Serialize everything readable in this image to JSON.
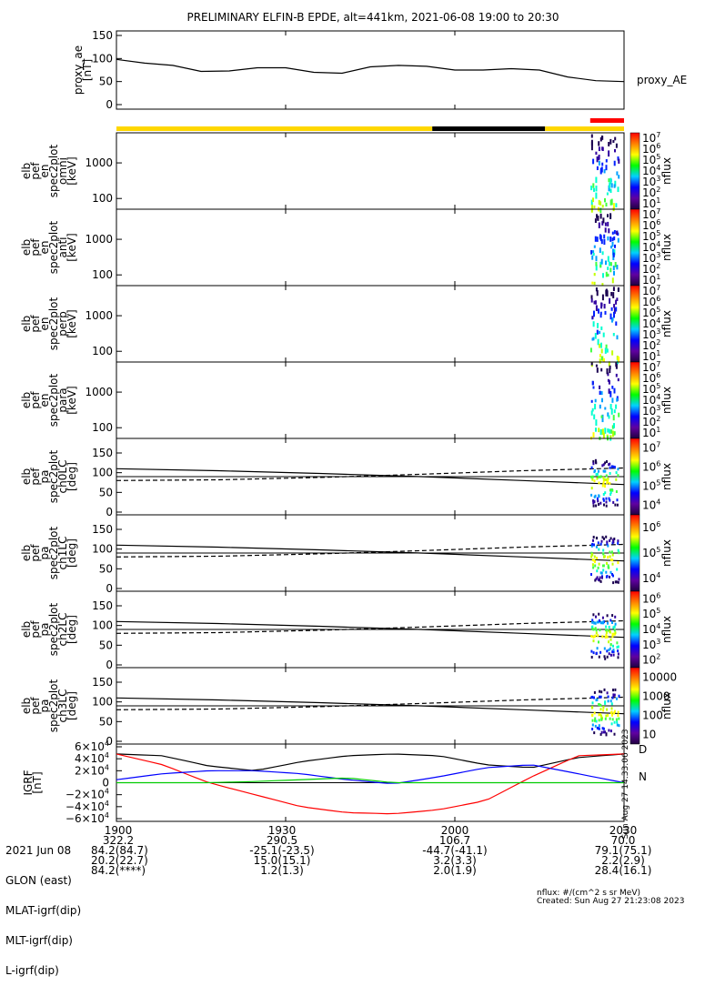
{
  "title": "PRELIMINARY ELFIN-B EPDE, alt=441km, 2021-06-08 19:00 to 20:30",
  "ae_panel": {
    "ylabel": [
      "proxy_ae",
      "[nT]"
    ],
    "legend": "proxy_AE",
    "yticks": [
      "0",
      "50",
      "100",
      "150"
    ]
  },
  "status_bar": {
    "colors": {
      "day": "#ffd700",
      "night": "#000000",
      "science": "#ff0000"
    },
    "segments": [
      {
        "state": "day",
        "start": 1900,
        "end": 1956
      },
      {
        "state": "night",
        "start": 1956,
        "end": 2016
      },
      {
        "state": "day",
        "start": 2016,
        "end": 2030
      }
    ],
    "science_zone": {
      "start": 2024,
      "end": 2030
    }
  },
  "spectrogram_panels": [
    {
      "ylabel": [
        "elb",
        "pef",
        "en",
        "spec2plot",
        "omni",
        "[keV]"
      ],
      "yticks": [
        "100",
        "1000"
      ],
      "zlabel": "nflux",
      "zticks": [
        "10",
        "10",
        "10",
        "10",
        "10",
        "10",
        "10"
      ],
      "zexp": [
        "1",
        "2",
        "3",
        "4",
        "5",
        "6",
        "7"
      ]
    },
    {
      "ylabel": [
        "elb",
        "pef",
        "en",
        "spec2plot",
        "anti",
        "[keV]"
      ],
      "yticks": [
        "100",
        "1000"
      ],
      "zlabel": "nflux",
      "zticks": [
        "10",
        "10",
        "10",
        "10",
        "10",
        "10",
        "10"
      ],
      "zexp": [
        "1",
        "2",
        "3",
        "4",
        "5",
        "6",
        "7"
      ]
    },
    {
      "ylabel": [
        "elb",
        "pef",
        "en",
        "spec2plot",
        "perp",
        "[keV]"
      ],
      "yticks": [
        "100",
        "1000"
      ],
      "zlabel": "nflux",
      "zticks": [
        "10",
        "10",
        "10",
        "10",
        "10",
        "10",
        "10"
      ],
      "zexp": [
        "1",
        "2",
        "3",
        "4",
        "5",
        "6",
        "7"
      ]
    },
    {
      "ylabel": [
        "elb",
        "pef",
        "en",
        "spec2plot",
        "para",
        "[keV]"
      ],
      "yticks": [
        "100",
        "1000"
      ],
      "zlabel": "nflux",
      "zticks": [
        "10",
        "10",
        "10",
        "10",
        "10",
        "10",
        "10"
      ],
      "zexp": [
        "1",
        "2",
        "3",
        "4",
        "5",
        "6",
        "7"
      ]
    }
  ],
  "pitch_panels": [
    {
      "ylabel": [
        "elb",
        "pef",
        "pa",
        "spec2plot",
        "ch0LC",
        "[deg]"
      ],
      "yticks": [
        "0",
        "50",
        "100",
        "150"
      ],
      "zlabel": "nflux",
      "zticks": [
        "10",
        "10",
        "10",
        "10"
      ],
      "zexp": [
        "4",
        "5",
        "6",
        "7"
      ]
    },
    {
      "ylabel": [
        "elb",
        "pef",
        "pa",
        "spec2plot",
        "ch1LC",
        "[deg]"
      ],
      "yticks": [
        "0",
        "50",
        "100",
        "150"
      ],
      "zlabel": "nflux",
      "zticks": [
        "10",
        "10",
        "10"
      ],
      "zexp": [
        "4",
        "5",
        "6"
      ]
    },
    {
      "ylabel": [
        "elb",
        "pef",
        "pa",
        "spec2plot",
        "ch2LC",
        "[deg]"
      ],
      "yticks": [
        "0",
        "50",
        "100",
        "150"
      ],
      "zlabel": "nflux",
      "zticks": [
        "10",
        "10",
        "10",
        "10",
        "10"
      ],
      "zexp": [
        "2",
        "3",
        "4",
        "5",
        "6"
      ]
    },
    {
      "ylabel": [
        "elb",
        "pef",
        "pa",
        "spec2plot",
        "ch3LC",
        "[deg]"
      ],
      "yticks": [
        "0",
        "50",
        "100",
        "150"
      ],
      "zlabel": "nflux",
      "zticks": [
        "10",
        "100",
        "1000",
        "10000"
      ],
      "zexp": [
        "",
        "",
        "",
        ""
      ]
    }
  ],
  "igrf_panel": {
    "ylabel": [
      "IGRF",
      "[nT]"
    ],
    "yticks": [
      "6×10",
      "4×10",
      "2×10",
      "0",
      "−2×10",
      "−4×10",
      "−6×10"
    ],
    "yexp": "4",
    "legend": [
      "D",
      "N"
    ],
    "colors": {
      "D": "#ff0000",
      "N": "#00cc00",
      "E": "#0000ff",
      "total": "#000000"
    }
  },
  "chart_data": {
    "type": "line",
    "x_range": [
      "19:00",
      "20:30"
    ],
    "x_ticks": [
      "1900",
      "1930",
      "2000",
      "2030"
    ],
    "proxy_ae": {
      "name": "proxy_AE",
      "ylim": [
        0,
        150
      ],
      "x_min": [
        0,
        5,
        10,
        15,
        20,
        25,
        30,
        35,
        40,
        45,
        50,
        55,
        60,
        65,
        70,
        75,
        80,
        85,
        90
      ],
      "values": [
        98,
        90,
        85,
        72,
        73,
        80,
        80,
        70,
        68,
        82,
        85,
        83,
        75,
        75,
        78,
        75,
        60,
        52,
        50
      ]
    },
    "igrf": {
      "ylim": [
        -60000,
        60000
      ],
      "x_min": [
        0,
        10,
        20,
        30,
        40,
        45,
        50,
        55,
        60,
        70,
        80,
        90
      ],
      "D": [
        48000,
        30000,
        0,
        -20000,
        -40000,
        -50000,
        -52000,
        -45000,
        -30000,
        10000,
        45000,
        48000
      ],
      "N": [
        0,
        0,
        0,
        2000,
        5000,
        8000,
        0,
        0,
        0,
        0,
        0,
        0
      ],
      "E": [
        5000,
        15000,
        20000,
        20000,
        15000,
        5000,
        -2000,
        10000,
        25000,
        30000,
        15000,
        0
      ],
      "total": [
        48000,
        45000,
        28000,
        20000,
        35000,
        45000,
        48000,
        45000,
        30000,
        25000,
        42000,
        48000
      ]
    },
    "spectrogram": {
      "ylim_keV": [
        50,
        7000
      ],
      "zlim_nflux": [
        10,
        10000000
      ],
      "burst_x_min": [
        84,
        89
      ]
    },
    "pitch_angle": {
      "ylim_deg": [
        0,
        180
      ],
      "loss_cone_solid_deg": [
        110,
        105,
        98,
        90,
        80,
        70
      ],
      "loss_cone_dashed_deg": [
        80,
        82,
        88,
        96,
        105,
        112
      ],
      "reference_deg": 90
    }
  },
  "footer": {
    "row_labels": [
      "2021 Jun 08",
      "GLON (east)",
      "MLAT-igrf(dip)",
      "MLT-igrf(dip)",
      "L-igrf(dip)"
    ],
    "columns": [
      {
        "time": "1900",
        "values": [
          "322.2",
          "84.2(84.7)",
          "20.2(22.7)",
          "84.2(****)"
        ]
      },
      {
        "time": "1930",
        "values": [
          "290.5",
          "-25.1(-23.5)",
          "15.0(15.1)",
          "1.2(1.3)"
        ]
      },
      {
        "time": "2000",
        "values": [
          "106.7",
          "-44.7(-41.1)",
          "3.2(3.3)",
          "2.0(1.9)"
        ]
      },
      {
        "time": "2030",
        "values": [
          "70.0",
          "79.1(75.1)",
          "2.2(2.9)",
          "28.4(16.1)"
        ]
      }
    ],
    "nflux_units": "nflux: #/(cm^2 s sr MeV)",
    "created": "Created: Sun Aug 27 21:23:08 2023",
    "side_stamp": "Sun Aug 27 14:33:06 2023"
  }
}
